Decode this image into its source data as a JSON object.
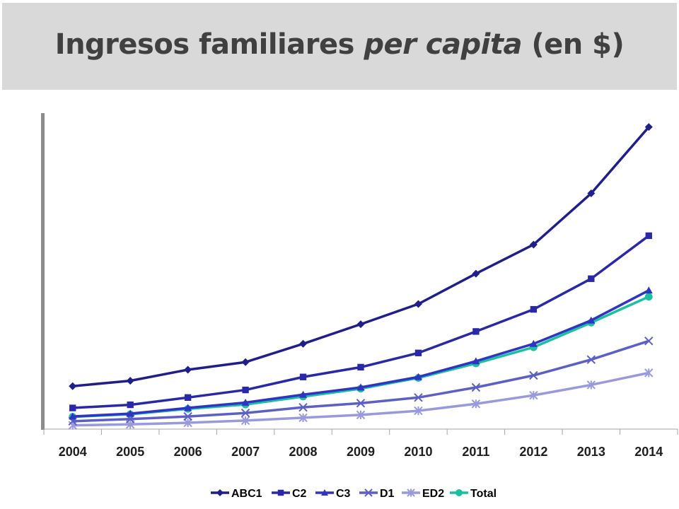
{
  "page": {
    "title_prefix": "Ingresos familiares ",
    "title_italic": "per capita",
    "title_suffix": " (en $)"
  },
  "chart_data": {
    "type": "line",
    "title": "Ingresos familiares per capita (en $)",
    "xlabel": "",
    "ylabel": "",
    "categories": [
      "2004",
      "2005",
      "2006",
      "2007",
      "2008",
      "2009",
      "2010",
      "2011",
      "2012",
      "2013",
      "2014"
    ],
    "ylim": [
      0,
      100
    ],
    "grid": false,
    "legend_position": "bottom",
    "series": [
      {
        "name": "ABC1",
        "marker": "diamond",
        "color": "#1f1f8c",
        "values": [
          13.6,
          15.3,
          18.8,
          21.2,
          27.0,
          33.2,
          39.6,
          49.2,
          58.4,
          74.6,
          95.6
        ]
      },
      {
        "name": "C2",
        "marker": "square",
        "color": "#2929a8",
        "values": [
          6.7,
          7.7,
          10.0,
          12.4,
          16.5,
          19.6,
          24.1,
          30.9,
          37.9,
          47.6,
          61.2
        ]
      },
      {
        "name": "C3",
        "marker": "triangle",
        "color": "#2f34c4",
        "values": [
          4.0,
          4.9,
          6.7,
          8.4,
          10.9,
          13.2,
          16.5,
          21.5,
          27.0,
          34.4,
          43.9
        ]
      },
      {
        "name": "D1",
        "marker": "x",
        "color": "#5b5fc6",
        "values": [
          2.5,
          3.2,
          4.0,
          5.1,
          6.9,
          8.2,
          10.0,
          13.2,
          17.0,
          22.0,
          27.9
        ]
      },
      {
        "name": "ED2",
        "marker": "star",
        "color": "#9999dd",
        "values": [
          1.2,
          1.5,
          2.0,
          2.7,
          3.6,
          4.5,
          5.8,
          8.0,
          10.7,
          14.0,
          17.8
        ]
      },
      {
        "name": "Total",
        "marker": "circle",
        "color": "#19c0a2",
        "values": [
          3.9,
          4.7,
          6.4,
          7.8,
          10.3,
          12.8,
          16.2,
          20.8,
          25.9,
          33.7,
          41.9
        ]
      }
    ]
  }
}
